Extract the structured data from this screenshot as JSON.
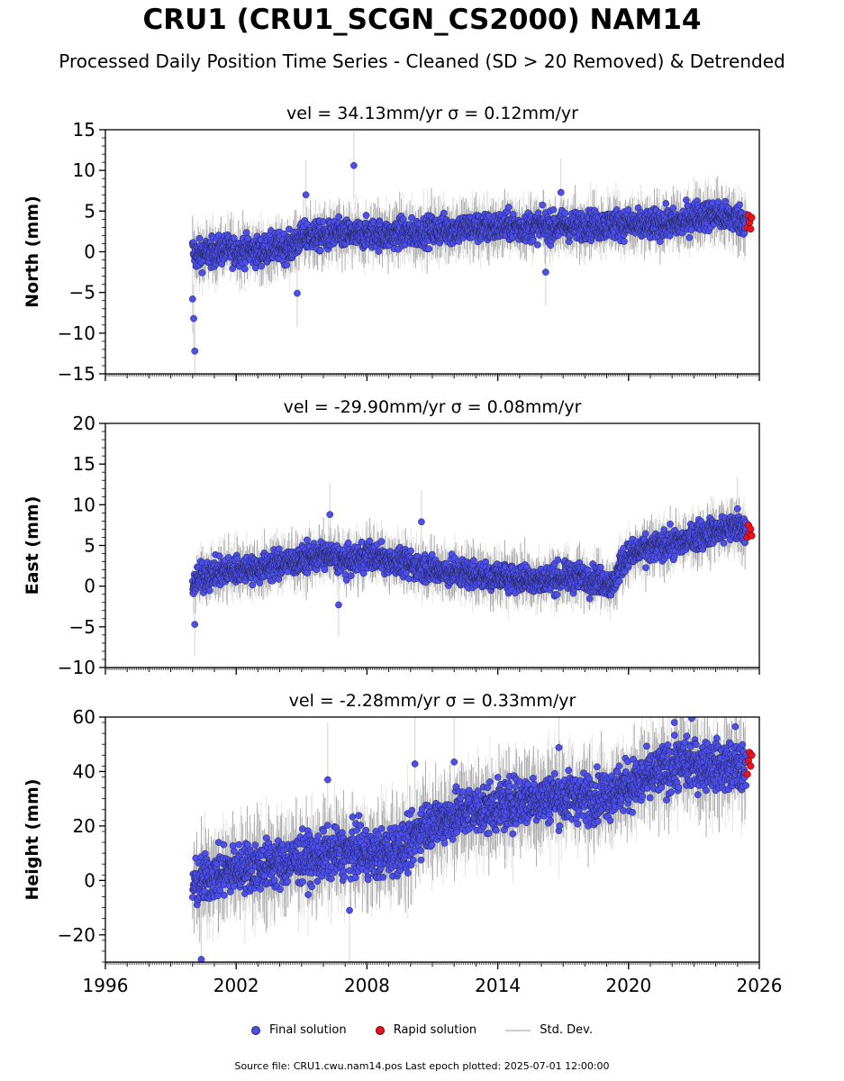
{
  "title": "CRU1 (CRU1_SCGN_CS2000) NAM14",
  "subtitle": "Processed Daily Position Time Series - Cleaned (SD > 20 Removed) & Detrended",
  "legend": {
    "final": "Final solution",
    "rapid": "Rapid solution",
    "std": "Std. Dev."
  },
  "footer": "Source file: CRU1.cwu.nam14.pos  Last epoch plotted: 2025-07-01 12:00:00",
  "colors": {
    "final": "#4b4ff0",
    "rapid": "#e8141c",
    "std": "#c8c8c8",
    "outline": "#222244"
  },
  "chart_data": [
    {
      "type": "scatter",
      "component": "north",
      "title": "vel = 34.13mm/yr   σ = 0.12mm/yr",
      "ylabel": "North (mm)",
      "xlim": [
        1996,
        2026
      ],
      "ylim": [
        -15,
        15
      ],
      "yticks": [
        -15,
        -10,
        -5,
        0,
        5,
        10,
        15
      ],
      "xticks": [
        1996,
        2002,
        2008,
        2014,
        2020,
        2026
      ],
      "x_tick_labels_visible": false,
      "series": [
        {
          "name": "Final solution",
          "x": [
            2000.0,
            2000.2,
            2000.5,
            2001.0,
            2001.5,
            2002.0,
            2002.5,
            2003.0,
            2003.5,
            2004.0,
            2004.5,
            2004.9,
            2005.2,
            2005.6,
            2006.0,
            2006.5,
            2007.0,
            2007.5,
            2008.0,
            2008.5,
            2009.0,
            2009.5,
            2010.0,
            2010.5,
            2011.0,
            2011.5,
            2012.0,
            2012.5,
            2013.0,
            2013.5,
            2014.0,
            2014.5,
            2015.0,
            2015.5,
            2016.0,
            2016.5,
            2017.0,
            2017.5,
            2018.0,
            2018.5,
            2019.0,
            2019.5,
            2020.0,
            2020.5,
            2021.0,
            2021.5,
            2022.0,
            2022.5,
            2023.0,
            2023.5,
            2024.0,
            2024.5,
            2025.0,
            2025.4
          ],
          "y": [
            0.2,
            -0.5,
            -0.2,
            0.0,
            0.3,
            0.1,
            0.2,
            0.0,
            0.4,
            0.6,
            0.5,
            1.5,
            1.9,
            2.0,
            1.8,
            2.1,
            2.2,
            2.0,
            2.3,
            2.1,
            2.0,
            2.4,
            2.2,
            2.5,
            2.6,
            2.8,
            2.7,
            2.9,
            3.0,
            2.9,
            3.1,
            3.2,
            3.0,
            3.1,
            3.2,
            3.0,
            3.3,
            3.1,
            3.4,
            3.2,
            3.3,
            3.5,
            3.4,
            3.2,
            3.3,
            3.5,
            3.4,
            3.6,
            4.5,
            4.4,
            4.6,
            4.2,
            4.1,
            3.8
          ],
          "spread": 1.6,
          "outliers": [
            [
              2000.1,
              -12.2
            ],
            [
              2000.05,
              -8.2
            ],
            [
              2000.0,
              -5.8
            ],
            [
              2007.4,
              10.6
            ],
            [
              2005.2,
              7.0
            ],
            [
              2016.9,
              7.3
            ],
            [
              2016.2,
              -2.5
            ],
            [
              2004.8,
              -5.1
            ]
          ]
        },
        {
          "name": "Rapid solution",
          "x": [
            2025.45,
            2025.5,
            2025.55,
            2025.6,
            2025.65
          ],
          "y": [
            3.0,
            4.5,
            3.6,
            2.8,
            4.2
          ]
        }
      ]
    },
    {
      "type": "scatter",
      "component": "east",
      "title": "vel = -29.90mm/yr   σ = 0.08mm/yr",
      "ylabel": "East (mm)",
      "xlim": [
        1996,
        2026
      ],
      "ylim": [
        -10,
        20
      ],
      "yticks": [
        -10,
        -5,
        0,
        5,
        10,
        15,
        20
      ],
      "xticks": [
        1996,
        2002,
        2008,
        2014,
        2020,
        2026
      ],
      "x_tick_labels_visible": false,
      "series": [
        {
          "name": "Final solution",
          "x": [
            2000.0,
            2000.5,
            2001.0,
            2001.5,
            2002.0,
            2002.5,
            2003.0,
            2003.5,
            2004.0,
            2004.5,
            2005.0,
            2005.5,
            2006.0,
            2006.5,
            2007.0,
            2007.5,
            2008.0,
            2008.5,
            2009.0,
            2009.5,
            2010.0,
            2010.5,
            2011.0,
            2011.5,
            2012.0,
            2012.5,
            2013.0,
            2013.5,
            2014.0,
            2014.5,
            2015.0,
            2015.5,
            2016.0,
            2016.5,
            2017.0,
            2017.5,
            2018.0,
            2018.5,
            2019.0,
            2019.3,
            2019.6,
            2020.0,
            2020.5,
            2021.0,
            2021.5,
            2022.0,
            2022.5,
            2023.0,
            2023.5,
            2024.0,
            2024.5,
            2025.0,
            2025.4
          ],
          "y": [
            0.3,
            1.2,
            1.5,
            1.8,
            2.0,
            2.2,
            2.1,
            2.5,
            2.8,
            3.0,
            3.2,
            3.6,
            3.8,
            3.5,
            3.0,
            3.3,
            3.8,
            3.5,
            3.2,
            3.0,
            2.6,
            2.4,
            2.0,
            1.8,
            1.7,
            1.6,
            1.4,
            1.2,
            1.0,
            1.1,
            0.9,
            0.8,
            0.7,
            0.9,
            1.0,
            1.2,
            1.1,
            0.8,
            0.5,
            0.0,
            2.5,
            3.8,
            4.2,
            4.6,
            5.0,
            5.2,
            5.4,
            6.0,
            6.5,
            6.8,
            7.0,
            7.2,
            7.0
          ],
          "spread": 1.5,
          "outliers": [
            [
              2000.1,
              -4.7
            ],
            [
              2006.3,
              8.8
            ],
            [
              2006.7,
              -2.3
            ],
            [
              2010.5,
              7.9
            ],
            [
              2025.0,
              9.5
            ]
          ]
        },
        {
          "name": "Rapid solution",
          "x": [
            2025.45,
            2025.5,
            2025.55,
            2025.6,
            2025.65
          ],
          "y": [
            6.0,
            7.5,
            6.5,
            7.0,
            6.2
          ]
        }
      ]
    },
    {
      "type": "scatter",
      "component": "height",
      "title": "vel = -2.28mm/yr   σ = 0.33mm/yr",
      "ylabel": "Height (mm)",
      "xlim": [
        1996,
        2026
      ],
      "ylim": [
        -30,
        60
      ],
      "yticks": [
        -20,
        0,
        20,
        40,
        60
      ],
      "xticks": [
        1996,
        2002,
        2008,
        2014,
        2020,
        2026
      ],
      "x_tick_labels": [
        "1996",
        "2002",
        "2008",
        "2014",
        "2020",
        "2026"
      ],
      "series": [
        {
          "name": "Final solution",
          "x": [
            2000.0,
            2000.5,
            2001.0,
            2001.5,
            2002.0,
            2002.5,
            2003.0,
            2003.5,
            2004.0,
            2004.5,
            2005.0,
            2005.5,
            2006.0,
            2006.5,
            2007.0,
            2007.5,
            2008.0,
            2008.5,
            2009.0,
            2009.5,
            2010.0,
            2010.3,
            2010.6,
            2011.0,
            2011.5,
            2012.0,
            2012.5,
            2013.0,
            2013.5,
            2014.0,
            2014.5,
            2015.0,
            2015.5,
            2016.0,
            2016.5,
            2017.0,
            2017.5,
            2018.0,
            2018.5,
            2019.0,
            2019.5,
            2020.0,
            2020.5,
            2021.0,
            2021.5,
            2022.0,
            2022.5,
            2023.0,
            2023.5,
            2024.0,
            2024.5,
            2025.0,
            2025.4
          ],
          "y": [
            -2,
            0,
            2,
            3,
            4,
            5,
            5,
            6,
            6,
            7,
            8,
            8,
            9,
            10,
            10,
            11,
            10,
            9,
            11,
            12,
            13,
            18,
            20,
            21,
            22,
            24,
            25,
            26,
            26,
            27,
            28,
            29,
            30,
            30,
            31,
            30,
            31,
            30,
            31,
            32,
            33,
            35,
            36,
            38,
            40,
            42,
            43,
            42,
            43,
            42,
            42,
            41,
            40
          ],
          "spread": 8,
          "outliers": [
            [
              2000.4,
              -29.0
            ],
            [
              2006.2,
              37.0
            ],
            [
              2007.2,
              -11.0
            ],
            [
              2010.2,
              42.8
            ],
            [
              2012.0,
              43.5
            ],
            [
              2016.8,
              48.8
            ],
            [
              2022.1,
              58.0
            ],
            [
              2022.9,
              59.5
            ],
            [
              2024.9,
              56.5
            ]
          ]
        },
        {
          "name": "Rapid solution",
          "x": [
            2025.45,
            2025.5,
            2025.55,
            2025.6,
            2025.65
          ],
          "y": [
            39,
            44,
            47,
            42,
            46
          ]
        }
      ]
    }
  ]
}
